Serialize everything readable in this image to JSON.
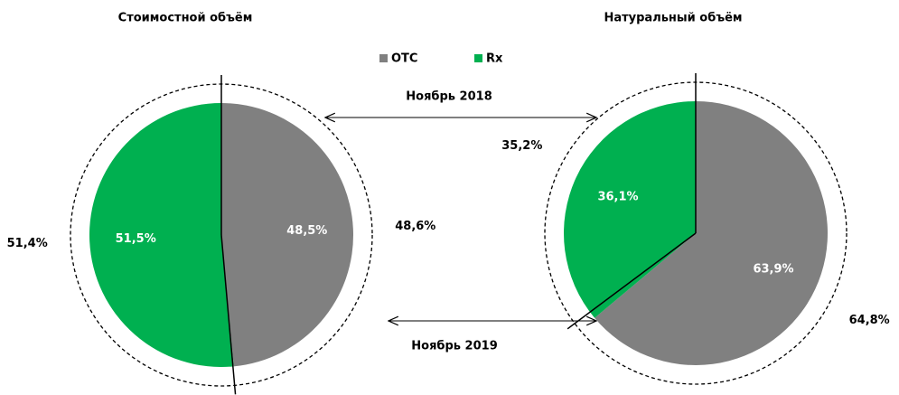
{
  "categories": [
    "OTC",
    "Rx"
  ],
  "colors": [
    "#808080",
    "#00b050"
  ],
  "series_names": [
    "Ноябрь 2019",
    "Ноябрь 2018"
  ],
  "chart_data": [
    {
      "type": "pie",
      "title": "Стоимостной  объём",
      "series": [
        {
          "values": [
            48.5,
            51.5
          ],
          "value_labels": [
            "48,5%",
            "51,5%"
          ]
        },
        {
          "values": [
            48.6,
            51.4
          ],
          "value_labels": [
            "48,6%",
            "51,4%"
          ]
        }
      ]
    },
    {
      "type": "pie",
      "title": "Натуральный объём",
      "series": [
        {
          "values": [
            63.9,
            36.1
          ],
          "value_labels": [
            "63,9%",
            "36,1%"
          ]
        },
        {
          "values": [
            64.8,
            35.2
          ],
          "value_labels": [
            "64,8%",
            "35,2%"
          ]
        }
      ]
    }
  ]
}
